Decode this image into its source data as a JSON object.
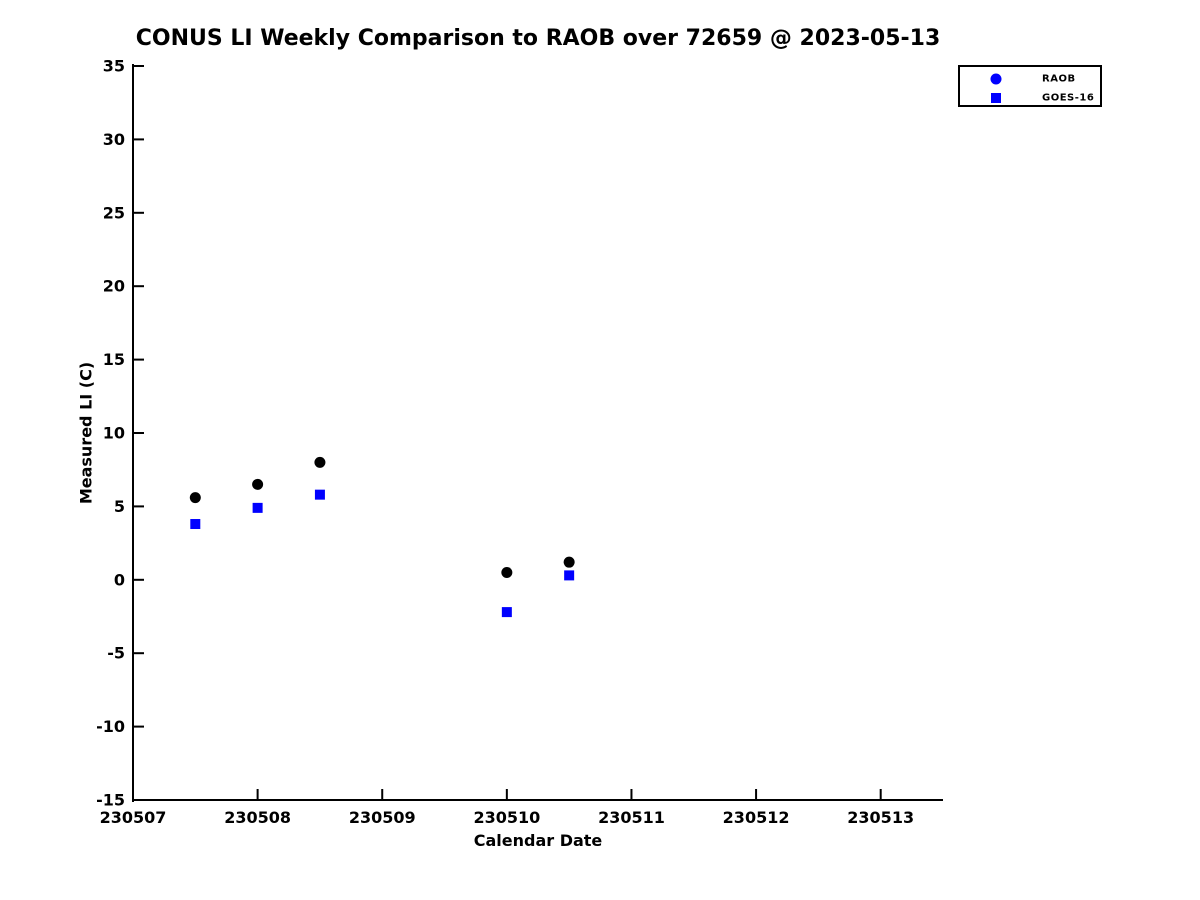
{
  "chart_data": {
    "type": "scatter",
    "title": "CONUS LI Weekly Comparison to RAOB over 72659 @ 2023-05-13",
    "xlabel": "Calendar Date",
    "ylabel": "Measured LI (C)",
    "xlim": [
      230507,
      230513.5
    ],
    "ylim": [
      -15,
      35
    ],
    "x_ticks": [
      "230507",
      "230508",
      "230509",
      "230510",
      "230511",
      "230512",
      "230513"
    ],
    "x_tick_values": [
      230507,
      230508,
      230509,
      230510,
      230511,
      230512,
      230513
    ],
    "y_ticks": [
      "35",
      "30",
      "25",
      "20",
      "15",
      "10",
      "5",
      "0",
      "-5",
      "-10",
      "-15"
    ],
    "y_tick_values": [
      35,
      30,
      25,
      20,
      15,
      10,
      5,
      0,
      -5,
      -10,
      -15
    ],
    "grid": false,
    "axis_color": "#000000",
    "background_color": "#ffffff",
    "legend": {
      "position": "top-right",
      "entries": [
        {
          "label": "RAOB",
          "marker": "circle",
          "color": "#0000ff"
        },
        {
          "label": "GOES-16",
          "marker": "square",
          "color": "#0000ff"
        }
      ]
    },
    "series": [
      {
        "name": "RAOB",
        "marker": "circle",
        "color": "#000000",
        "points": [
          [
            230507.5,
            5.6
          ],
          [
            230508.0,
            6.5
          ],
          [
            230508.5,
            8.0
          ],
          [
            230510.0,
            0.5
          ],
          [
            230510.5,
            1.2
          ]
        ]
      },
      {
        "name": "GOES-16",
        "marker": "square",
        "color": "#0000ff",
        "points": [
          [
            230507.5,
            3.8
          ],
          [
            230508.0,
            4.9
          ],
          [
            230508.5,
            5.8
          ],
          [
            230510.0,
            -2.2
          ],
          [
            230510.5,
            0.3
          ]
        ]
      }
    ]
  }
}
